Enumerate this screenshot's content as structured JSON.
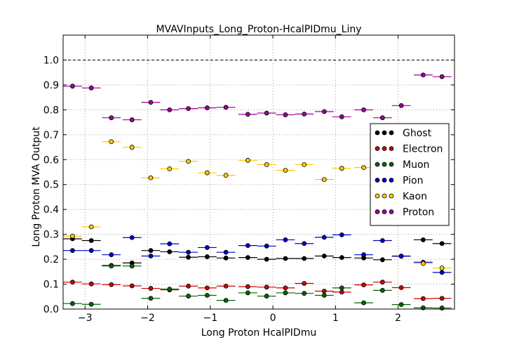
{
  "chart_data": {
    "type": "scatter",
    "title": "MVAVInputs_Long_Proton-HcalPIDmu_Liny",
    "xlabel": "Long Proton HcalPIDmu",
    "ylabel": "Long Proton MVA Output",
    "xlim": [
      -3.35,
      2.9
    ],
    "ylim": [
      0.0,
      1.1
    ],
    "xticks": [
      -3,
      -2,
      -1,
      0,
      1,
      2
    ],
    "xtick_labels": [
      "−3",
      "−2",
      "−1",
      "0",
      "1",
      "2"
    ],
    "yticks": [
      0.0,
      0.1,
      0.2,
      0.3,
      0.4,
      0.5,
      0.6,
      0.7,
      0.8,
      0.9,
      1.0
    ],
    "ytick_labels": [
      "0.0",
      "0.1",
      "0.2",
      "0.3",
      "0.4",
      "0.5",
      "0.6",
      "0.7",
      "0.8",
      "0.9",
      "1.0"
    ],
    "grid": true,
    "reference_line": 1.0,
    "legend_position": "right",
    "x": [
      -3.2,
      -2.9,
      -2.58,
      -2.25,
      -1.95,
      -1.65,
      -1.35,
      -1.05,
      -0.75,
      -0.4,
      -0.1,
      0.2,
      0.5,
      0.82,
      1.1,
      1.45,
      1.75,
      2.05,
      2.4,
      2.7
    ],
    "bin_halfwidth": 0.15,
    "series": [
      {
        "name": "Ghost",
        "color": "#000000",
        "values": [
          0.282,
          0.275,
          0.175,
          0.185,
          0.235,
          0.23,
          0.208,
          0.21,
          0.205,
          0.207,
          0.2,
          0.203,
          0.203,
          0.213,
          0.207,
          0.205,
          0.198,
          0.212,
          0.278,
          0.263
        ]
      },
      {
        "name": "Electron",
        "color": "#cc0000",
        "values": [
          0.108,
          0.101,
          0.098,
          0.093,
          0.083,
          0.077,
          0.092,
          0.085,
          0.092,
          0.09,
          0.088,
          0.085,
          0.103,
          0.072,
          0.068,
          0.097,
          0.108,
          0.086,
          0.042,
          0.043
        ]
      },
      {
        "name": "Muon",
        "color": "#006600",
        "values": [
          0.022,
          0.019,
          0.173,
          0.173,
          0.043,
          0.08,
          0.052,
          0.055,
          0.035,
          0.065,
          0.052,
          0.065,
          0.063,
          0.055,
          0.085,
          0.025,
          0.075,
          0.018,
          0.005,
          0.004
        ]
      },
      {
        "name": "Pion",
        "color": "#0000cc",
        "values": [
          0.235,
          0.235,
          0.218,
          0.287,
          0.213,
          0.262,
          0.228,
          0.247,
          0.228,
          0.255,
          0.253,
          0.278,
          0.263,
          0.288,
          0.298,
          0.218,
          0.275,
          0.213,
          0.188,
          0.147
        ]
      },
      {
        "name": "Kaon",
        "color": "#ffcc00",
        "values": [
          0.293,
          0.33,
          0.672,
          0.65,
          0.527,
          0.563,
          0.593,
          0.547,
          0.537,
          0.597,
          0.58,
          0.557,
          0.58,
          0.52,
          0.565,
          0.568,
          null,
          null,
          0.183,
          0.165
        ]
      },
      {
        "name": "Proton",
        "color": "#990099",
        "values": [
          0.895,
          0.888,
          0.768,
          0.76,
          0.83,
          0.8,
          0.805,
          0.808,
          0.81,
          0.782,
          0.787,
          0.78,
          0.783,
          0.793,
          0.772,
          0.8,
          0.768,
          0.817,
          0.94,
          0.933
        ]
      }
    ]
  }
}
